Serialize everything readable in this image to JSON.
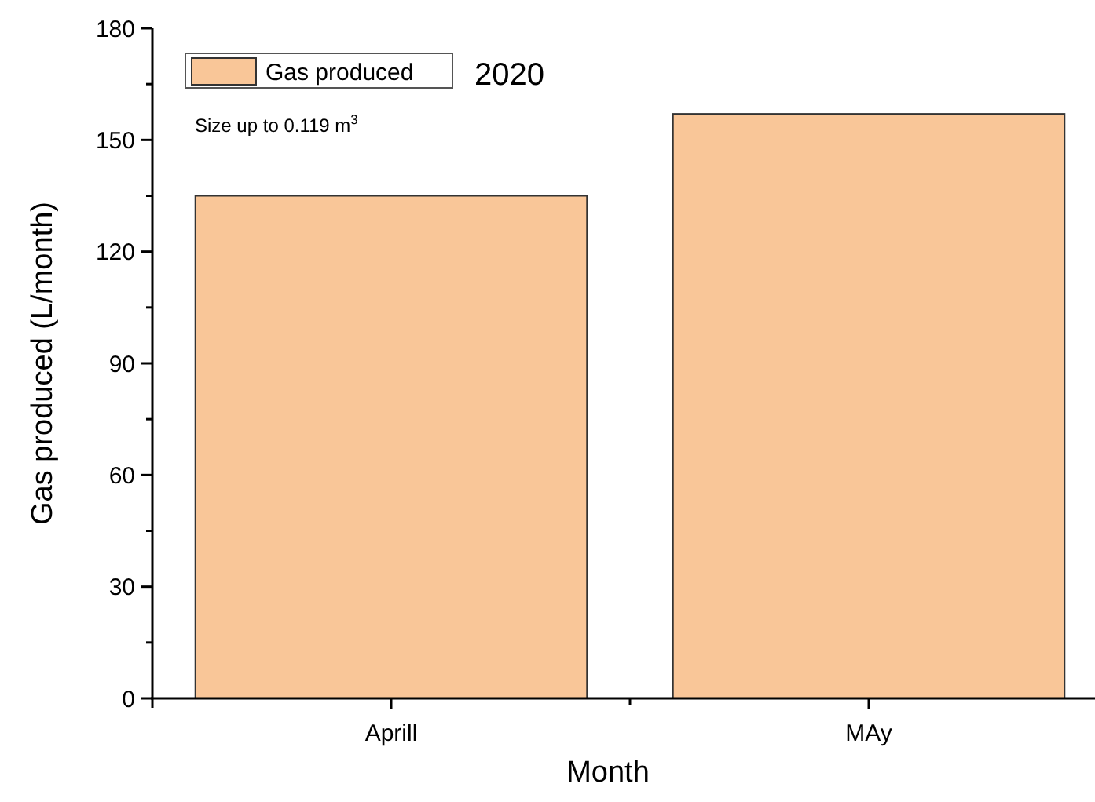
{
  "chart_data": {
    "type": "bar",
    "xlabel": "Month",
    "ylabel": "Gas produced (L/month)",
    "categories": [
      "Aprill",
      "MAy"
    ],
    "series": [
      {
        "name": "Gas produced",
        "color": "#f9c698",
        "values": [
          135,
          157
        ]
      }
    ],
    "ylim": [
      0,
      180
    ],
    "yticks": [
      0,
      {
        "value": 15,
        "label": null
      },
      30,
      {
        "value": 45,
        "label": null
      },
      60,
      {
        "value": 75,
        "label": null
      },
      90,
      {
        "value": 105,
        "label": null
      },
      120,
      {
        "value": 135,
        "label": null
      },
      150,
      {
        "value": 165,
        "label": null
      },
      180
    ],
    "annotations": [
      "2020",
      "Size up to 0.119 m$^{3}$"
    ],
    "legend": "top left",
    "grid": false
  }
}
